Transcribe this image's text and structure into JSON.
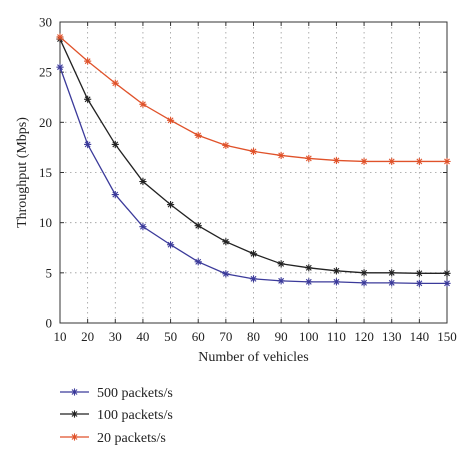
{
  "chart_data": {
    "type": "line",
    "xlabel": "Number of vehicles",
    "ylabel": "Throughput (Mbps)",
    "x": [
      10,
      20,
      30,
      40,
      50,
      60,
      70,
      80,
      90,
      100,
      110,
      120,
      130,
      140,
      150
    ],
    "xlim": [
      10,
      150
    ],
    "ylim": [
      0,
      30
    ],
    "xticks": [
      "10",
      "20",
      "30",
      "40",
      "50",
      "60",
      "70",
      "80",
      "90",
      "100",
      "110",
      "120",
      "130",
      "140",
      "150"
    ],
    "yticks": [
      "0",
      "5",
      "10",
      "15",
      "20",
      "25",
      "30"
    ],
    "grid": "dotted",
    "legend_position": "below",
    "series": [
      {
        "name": "500 packets/s",
        "color": "#3b3a9a",
        "values": [
          25.5,
          17.8,
          12.8,
          9.6,
          7.8,
          6.1,
          4.9,
          4.4,
          4.2,
          4.1,
          4.1,
          4.0,
          4.0,
          3.95,
          3.95
        ]
      },
      {
        "name": "100 packets/s",
        "color": "#222222",
        "values": [
          28.3,
          22.3,
          17.8,
          14.1,
          11.8,
          9.7,
          8.1,
          6.9,
          5.9,
          5.5,
          5.2,
          5.0,
          5.0,
          4.95,
          4.95
        ]
      },
      {
        "name": "20 packets/s",
        "color": "#e0522a",
        "values": [
          28.5,
          26.1,
          23.9,
          21.8,
          20.2,
          18.7,
          17.7,
          17.1,
          16.7,
          16.4,
          16.2,
          16.1,
          16.1,
          16.1,
          16.1
        ]
      }
    ]
  }
}
